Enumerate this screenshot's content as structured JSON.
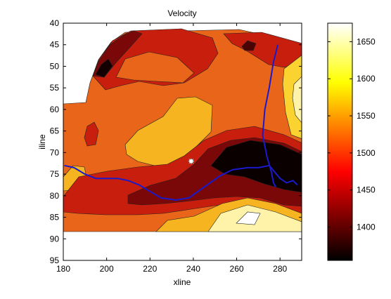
{
  "chart_data": {
    "type": "contour",
    "title": "Velocity",
    "xlabel": "xline",
    "ylabel": "iline",
    "xlim": [
      180,
      290
    ],
    "ylim": [
      95,
      40
    ],
    "y_reversed": true,
    "x_ticks": [
      "180",
      "200",
      "220",
      "240",
      "260",
      "280"
    ],
    "y_ticks": [
      "40",
      "45",
      "50",
      "55",
      "60",
      "65",
      "70",
      "75",
      "80",
      "85",
      "90",
      "95"
    ],
    "colorbar": {
      "min": 1355,
      "max": 1675,
      "ticks": [
        "1400",
        "1450",
        "1500",
        "1550",
        "1600",
        "1650"
      ],
      "colormap": "hot"
    },
    "well_marker": {
      "x": 239,
      "y": 72
    },
    "line_color": "#1a1acc",
    "blue_lines": [
      [
        [
          180.5,
          73
        ],
        [
          185,
          73.5
        ],
        [
          190,
          75
        ],
        [
          195,
          76
        ],
        [
          205,
          76
        ],
        [
          210,
          76.5
        ],
        [
          215,
          77.5
        ],
        [
          220,
          79
        ],
        [
          225,
          80.5
        ],
        [
          232,
          81
        ],
        [
          238,
          80.5
        ],
        [
          245,
          78
        ],
        [
          252,
          75.5
        ],
        [
          258,
          74
        ],
        [
          265,
          73.5
        ],
        [
          270,
          73.5
        ],
        [
          275,
          73
        ],
        [
          280,
          76
        ],
        [
          283,
          77
        ],
        [
          286,
          76.5
        ],
        [
          288,
          77.5
        ]
      ],
      [
        [
          279,
          45
        ],
        [
          277,
          49
        ],
        [
          275,
          55
        ],
        [
          273,
          60
        ],
        [
          272,
          66
        ],
        [
          274,
          71
        ],
        [
          276,
          74.5
        ],
        [
          277,
          77
        ],
        [
          278,
          78
        ]
      ]
    ]
  }
}
